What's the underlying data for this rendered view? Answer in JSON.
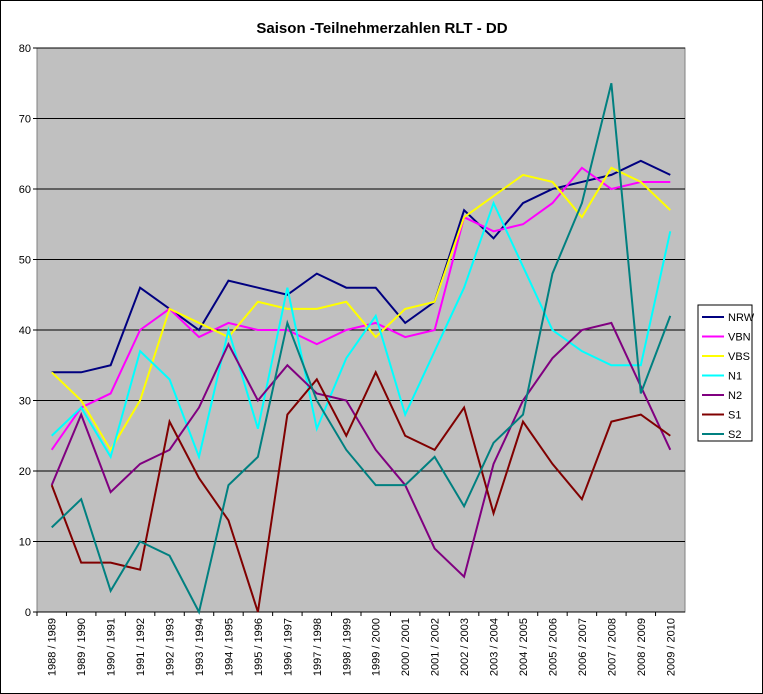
{
  "chart_data": {
    "type": "line",
    "title": "Saison -Teilnehmerzahlen RLT - DD",
    "categories": [
      "1988 / 1989",
      "1989 / 1990",
      "1990 / 1991",
      "1991 / 1992",
      "1992 / 1993",
      "1993 / 1994",
      "1994 / 1995",
      "1995 / 1996",
      "1996 / 1997",
      "1997 / 1998",
      "1998 / 1999",
      "1999 / 2000",
      "2000 / 2001",
      "2001 / 2002",
      "2002 / 2003",
      "2003 / 2004",
      "2004 / 2005",
      "2005 / 2006",
      "2006 / 2007",
      "2007 / 2008",
      "2008 / 2009",
      "2009 / 2010"
    ],
    "series": [
      {
        "name": "NRW",
        "color": "#000080",
        "values": [
          34,
          34,
          35,
          46,
          43,
          40,
          47,
          46,
          45,
          48,
          46,
          46,
          41,
          44,
          57,
          53,
          58,
          60,
          61,
          62,
          64,
          62
        ]
      },
      {
        "name": "VBN",
        "color": "#ff00ff",
        "values": [
          23,
          29,
          31,
          40,
          43,
          39,
          41,
          40,
          40,
          38,
          40,
          41,
          39,
          40,
          56,
          54,
          55,
          58,
          63,
          60,
          61,
          61
        ]
      },
      {
        "name": "VBS",
        "color": "#ffff00",
        "values": [
          34,
          30,
          23,
          30,
          43,
          41,
          39,
          44,
          43,
          43,
          44,
          39,
          43,
          44,
          56,
          59,
          62,
          61,
          56,
          63,
          61,
          57
        ]
      },
      {
        "name": "N1",
        "color": "#00ffff",
        "values": [
          25,
          29,
          22,
          37,
          33,
          22,
          40,
          26,
          46,
          26,
          36,
          42,
          28,
          37,
          46,
          58,
          49,
          40,
          37,
          35,
          35,
          54
        ]
      },
      {
        "name": "N2",
        "color": "#800080",
        "values": [
          18,
          28,
          17,
          21,
          23,
          29,
          38,
          30,
          35,
          31,
          30,
          23,
          18,
          9,
          5,
          21,
          30,
          36,
          40,
          41,
          32,
          23
        ]
      },
      {
        "name": "S1",
        "color": "#800000",
        "values": [
          18,
          7,
          7,
          6,
          27,
          19,
          13,
          0,
          28,
          33,
          25,
          34,
          25,
          23,
          29,
          14,
          27,
          21,
          16,
          27,
          28,
          25
        ]
      },
      {
        "name": "S2",
        "color": "#008080",
        "values": [
          12,
          16,
          3,
          10,
          8,
          0,
          18,
          22,
          41,
          30,
          23,
          18,
          18,
          22,
          15,
          24,
          28,
          48,
          58,
          75,
          31,
          42
        ]
      }
    ],
    "ylim": [
      0,
      80
    ],
    "yticks": [
      0,
      10,
      20,
      30,
      40,
      50,
      60,
      70,
      80
    ],
    "grid": true,
    "legend": "right"
  }
}
